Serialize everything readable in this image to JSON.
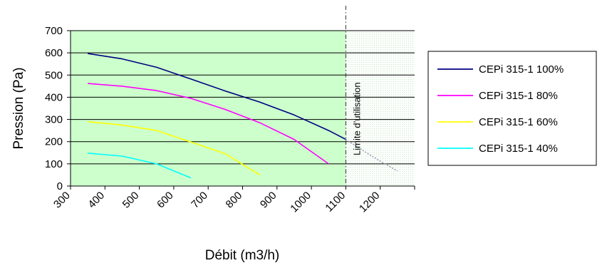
{
  "chart_data": {
    "type": "line",
    "xlabel": "Débit (m3/h)",
    "ylabel": "Pression (Pa)",
    "xlim": [
      300,
      1300
    ],
    "ylim": [
      0,
      700
    ],
    "x_ticks": [
      300,
      400,
      500,
      600,
      700,
      800,
      900,
      1000,
      1100,
      1200
    ],
    "y_ticks": [
      0,
      100,
      200,
      300,
      400,
      500,
      600,
      700
    ],
    "grid": "horizontal",
    "legend_position": "right",
    "usable_region": {
      "x_max": 1100,
      "color": "#ccffcc"
    },
    "limit_line": {
      "x": 1100,
      "label": "Limite d’utilisation"
    },
    "series": [
      {
        "name": "CEPi 315-1 100%",
        "color": "#000080",
        "x": [
          350,
          450,
          550,
          650,
          750,
          850,
          950,
          1050,
          1100
        ],
        "y": [
          597,
          573,
          535,
          482,
          428,
          378,
          320,
          250,
          210
        ]
      },
      {
        "name": "CEPi 315-1 80%",
        "color": "#ff00ff",
        "x": [
          350,
          450,
          550,
          650,
          750,
          850,
          950,
          1050
        ],
        "y": [
          462,
          450,
          430,
          395,
          345,
          285,
          210,
          100
        ]
      },
      {
        "name": "CEPi 315-1 60%",
        "color": "#ffff00",
        "x": [
          350,
          450,
          550,
          650,
          750,
          850
        ],
        "y": [
          290,
          275,
          250,
          198,
          145,
          50
        ]
      },
      {
        "name": "CEPi 315-1 40%",
        "color": "#00ffff",
        "x": [
          350,
          450,
          550,
          650
        ],
        "y": [
          148,
          135,
          100,
          37
        ]
      }
    ],
    "extrapolation": {
      "color": "#8a8aa8",
      "x": [
        1100,
        1150,
        1200,
        1250
      ],
      "y": [
        210,
        160,
        112,
        68
      ]
    }
  }
}
